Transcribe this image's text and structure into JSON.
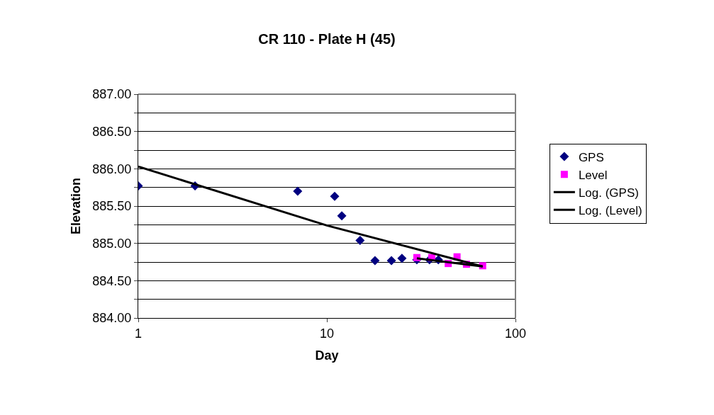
{
  "chart_data": {
    "type": "scatter",
    "title": "CR 110 - Plate H (45)",
    "xlabel": "Day",
    "ylabel": "Elevation",
    "log": "x",
    "xlim": [
      1,
      100
    ],
    "xticks": [
      1,
      10,
      100
    ],
    "ylim": [
      884.0,
      887.0
    ],
    "yticks": [
      {
        "value": 884.0,
        "label": "884.00"
      },
      {
        "value": 884.25,
        "label": null
      },
      {
        "value": 884.5,
        "label": "884.50"
      },
      {
        "value": 884.75,
        "label": null
      },
      {
        "value": 885.0,
        "label": "885.00"
      },
      {
        "value": 885.25,
        "label": null
      },
      {
        "value": 885.5,
        "label": "885.50"
      },
      {
        "value": 885.75,
        "label": null
      },
      {
        "value": 886.0,
        "label": "886.00"
      },
      {
        "value": 886.25,
        "label": null
      },
      {
        "value": 886.5,
        "label": "886.50"
      },
      {
        "value": 886.75,
        "label": null
      },
      {
        "value": 887.0,
        "label": "887.00"
      }
    ],
    "grid": "y",
    "legend": "right",
    "series": [
      {
        "name": "GPS",
        "marker": "diamond",
        "color": "#000080",
        "x": [
          1,
          2,
          7,
          11,
          12,
          15,
          18,
          22,
          25,
          30,
          35,
          39
        ],
        "values": [
          885.77,
          885.77,
          885.7,
          885.63,
          885.37,
          885.04,
          884.77,
          884.77,
          884.8,
          884.78,
          884.78,
          884.78
        ]
      },
      {
        "name": "Level",
        "marker": "square",
        "color": "#ff00ff",
        "x": [
          30,
          36,
          44,
          49,
          55,
          67
        ],
        "values": [
          884.81,
          884.81,
          884.73,
          884.82,
          884.72,
          884.7
        ]
      },
      {
        "name": "Log. (GPS)",
        "type": "line",
        "marker": "none",
        "color": "#000000",
        "x": [
          1,
          10,
          67
        ],
        "values": [
          886.03,
          885.24,
          884.69
        ]
      },
      {
        "name": "Log. (Level)",
        "type": "line",
        "marker": "none",
        "color": "#000000",
        "x": [
          30,
          67
        ],
        "values": [
          884.8,
          884.69
        ]
      }
    ]
  }
}
